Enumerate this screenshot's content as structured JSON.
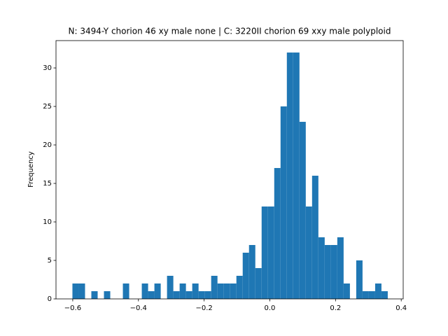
{
  "chart_data": {
    "type": "histogram",
    "title": "N: 3494-Y chorion 46 xy male none | C: 3220II chorion 69 xxy male polyploid",
    "y_label": "Frequency",
    "color": "#1f77b4",
    "bins": [
      -0.601,
      -0.5818,
      -0.5626,
      -0.5434,
      -0.5242,
      -0.505,
      -0.4858,
      -0.4666,
      -0.4474,
      -0.4282,
      -0.409,
      -0.3898,
      -0.3706,
      -0.3514,
      -0.3322,
      -0.313,
      -0.2938,
      -0.2746,
      -0.2554,
      -0.2362,
      -0.217,
      -0.1978,
      -0.1786,
      -0.1594,
      -0.1402,
      -0.121,
      -0.1018,
      -0.0826,
      -0.0634,
      -0.0442,
      -0.025,
      -0.0058,
      0.0134,
      0.0326,
      0.0518,
      0.071,
      0.0902,
      0.1094,
      0.1286,
      0.1478,
      0.167,
      0.1862,
      0.2054,
      0.2246,
      0.2438,
      0.263,
      0.2822,
      0.3014,
      0.3206,
      0.3398,
      0.359
    ],
    "counts": [
      2,
      2,
      0,
      1,
      0,
      1,
      0,
      0,
      2,
      0,
      0,
      2,
      1,
      2,
      0,
      3,
      1,
      2,
      1,
      2,
      1,
      1,
      3,
      2,
      2,
      2,
      3,
      6,
      7,
      4,
      12,
      12,
      17,
      25,
      32,
      32,
      23,
      12,
      16,
      8,
      7,
      7,
      8,
      2,
      0,
      5,
      1,
      1,
      2,
      1
    ],
    "xlim": [
      -0.651,
      0.406
    ],
    "ylim": [
      0,
      33.55
    ],
    "xticks": [
      {
        "value": -0.6,
        "label": "−0.6"
      },
      {
        "value": -0.4,
        "label": "−0.4"
      },
      {
        "value": -0.2,
        "label": "−0.2"
      },
      {
        "value": 0,
        "label": "0.0"
      },
      0.2,
      0.4
    ],
    "yticks": [
      0,
      5,
      10,
      15,
      20,
      25,
      30
    ]
  }
}
